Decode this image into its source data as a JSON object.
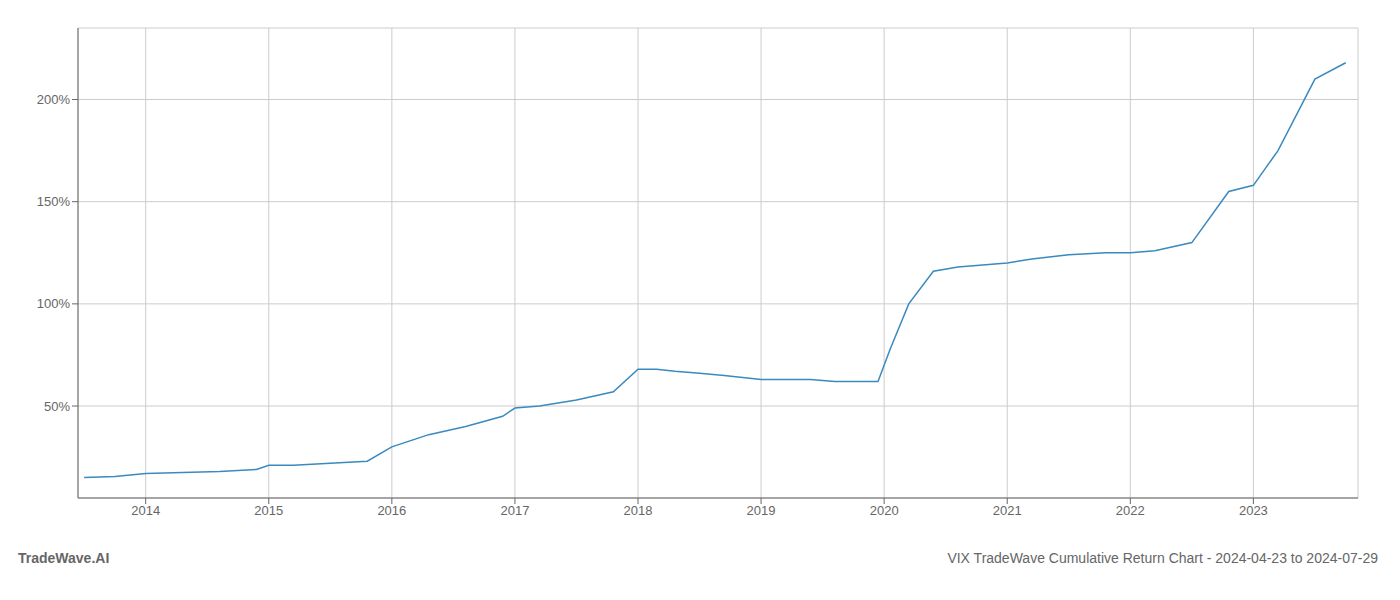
{
  "chart_data": {
    "type": "line",
    "title": "VIX TradeWave Cumulative Return Chart - 2024-04-23 to 2024-07-29",
    "annotations": [
      "TradeWave.AI"
    ],
    "x": [
      2013.5,
      2013.75,
      2014.0,
      2014.3,
      2014.6,
      2014.9,
      2015.0,
      2015.2,
      2015.5,
      2015.8,
      2016.0,
      2016.3,
      2016.6,
      2016.9,
      2017.0,
      2017.2,
      2017.5,
      2017.8,
      2018.0,
      2018.15,
      2018.3,
      2018.5,
      2018.7,
      2019.0,
      2019.2,
      2019.4,
      2019.6,
      2019.8,
      2019.95,
      2020.05,
      2020.2,
      2020.4,
      2020.6,
      2020.8,
      2021.0,
      2021.2,
      2021.5,
      2021.8,
      2022.0,
      2022.2,
      2022.5,
      2022.8,
      2023.0,
      2023.2,
      2023.5,
      2023.75
    ],
    "values": [
      15,
      15.5,
      17,
      17.5,
      18,
      19,
      21,
      21,
      22,
      23,
      30,
      36,
      40,
      45,
      49,
      50,
      53,
      57,
      68,
      68,
      67,
      66,
      65,
      63,
      63,
      63,
      62,
      62,
      62,
      78,
      100,
      116,
      118,
      119,
      120,
      122,
      124,
      125,
      125,
      126,
      130,
      155,
      158,
      175,
      210,
      218
    ],
    "color": "#3a8abf",
    "xlim": [
      2013.45,
      2023.85
    ],
    "xticks": [
      2014,
      2015,
      2016,
      2017,
      2018,
      2019,
      2020,
      2021,
      2022,
      2023
    ],
    "ylim": [
      5,
      235
    ],
    "yticks": [
      {
        "value": 50,
        "label": "50%"
      },
      {
        "value": 100,
        "label": "100%"
      },
      {
        "value": 150,
        "label": "150%"
      },
      {
        "value": 200,
        "label": "200%"
      }
    ],
    "grid": true
  }
}
